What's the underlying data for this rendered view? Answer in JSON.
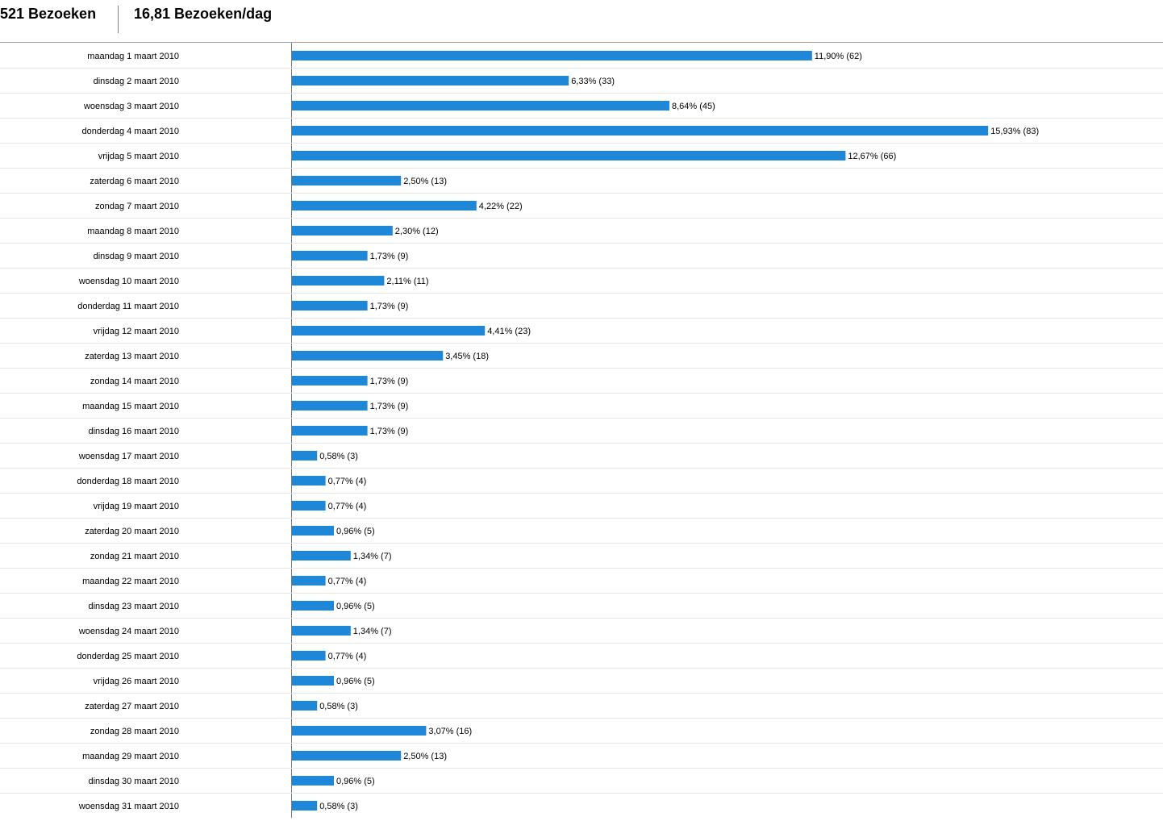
{
  "summary": {
    "visits": "521 Bezoeken",
    "per_day": "16,81 Bezoeken/dag"
  },
  "colors": {
    "bar": "#1e87d7"
  },
  "chart_data": {
    "type": "bar",
    "orientation": "horizontal",
    "title": "",
    "xlabel": "",
    "ylabel": "",
    "grid": false,
    "categories": [
      "maandag 1 maart 2010",
      "dinsdag 2 maart 2010",
      "woensdag 3 maart 2010",
      "donderdag 4 maart 2010",
      "vrijdag 5 maart 2010",
      "zaterdag 6 maart 2010",
      "zondag 7 maart 2010",
      "maandag 8 maart 2010",
      "dinsdag 9 maart 2010",
      "woensdag 10 maart 2010",
      "donderdag 11 maart 2010",
      "vrijdag 12 maart 2010",
      "zaterdag 13 maart 2010",
      "zondag 14 maart 2010",
      "maandag 15 maart 2010",
      "dinsdag 16 maart 2010",
      "woensdag 17 maart 2010",
      "donderdag 18 maart 2010",
      "vrijdag 19 maart 2010",
      "zaterdag 20 maart 2010",
      "zondag 21 maart 2010",
      "maandag 22 maart 2010",
      "dinsdag 23 maart 2010",
      "woensdag 24 maart 2010",
      "donderdag 25 maart 2010",
      "vrijdag 26 maart 2010",
      "zaterdag 27 maart 2010",
      "zondag 28 maart 2010",
      "maandag 29 maart 2010",
      "dinsdag 30 maart 2010",
      "woensdag 31 maart 2010"
    ],
    "values": [
      62,
      33,
      45,
      83,
      66,
      13,
      22,
      12,
      9,
      11,
      9,
      23,
      18,
      9,
      9,
      9,
      3,
      4,
      4,
      5,
      7,
      4,
      5,
      7,
      4,
      5,
      3,
      16,
      13,
      5,
      3
    ],
    "labels": [
      "11,90% (62)",
      "6,33% (33)",
      "8,64% (45)",
      "15,93% (83)",
      "12,67% (66)",
      "2,50% (13)",
      "4,22% (22)",
      "2,30% (12)",
      "1,73% (9)",
      "2,11% (11)",
      "1,73% (9)",
      "4,41% (23)",
      "3,45% (18)",
      "1,73% (9)",
      "1,73% (9)",
      "1,73% (9)",
      "0,58% (3)",
      "0,77% (4)",
      "0,77% (4)",
      "0,96% (5)",
      "1,34% (7)",
      "0,77% (4)",
      "0,96% (5)",
      "1,34% (7)",
      "0,77% (4)",
      "0,96% (5)",
      "0,58% (3)",
      "3,07% (16)",
      "2,50% (13)",
      "0,96% (5)",
      "0,58% (3)"
    ]
  }
}
